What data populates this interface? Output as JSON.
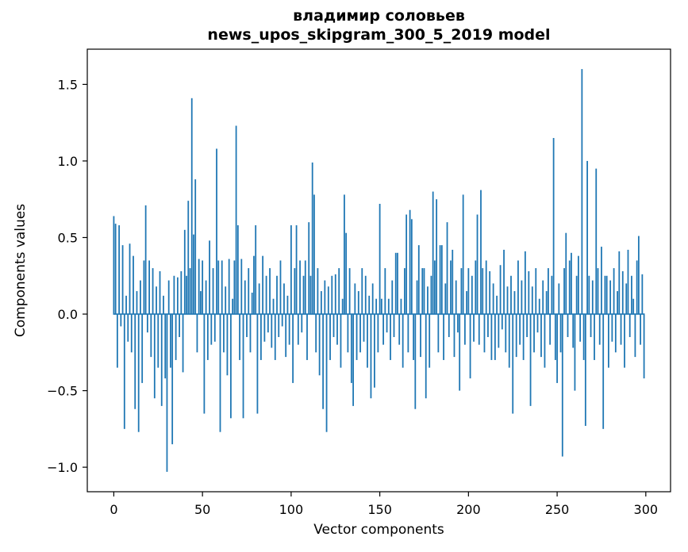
{
  "chart_data": {
    "type": "bar",
    "title_line1": "владимир соловьев",
    "title_line2": "news_upos_skipgram_300_5_2019 model",
    "xlabel": "Vector components",
    "ylabel": "Components values",
    "bar_color": "#1f77b4",
    "axis_color": "#000000",
    "grid": false,
    "legend": "none",
    "xlim": [
      -14.95,
      313.95
    ],
    "ylim": [
      -1.16,
      1.73
    ],
    "xticks": [
      0,
      50,
      100,
      150,
      200,
      250,
      300
    ],
    "xtick_labels": [
      "0",
      "50",
      "100",
      "150",
      "200",
      "250",
      "300"
    ],
    "yticks": [
      -1.0,
      -0.5,
      0.0,
      0.5,
      1.0,
      1.5
    ],
    "ytick_labels": [
      "−1.0",
      "−0.5",
      "0.0",
      "0.5",
      "1.0",
      "1.5"
    ],
    "n_components": 300,
    "values": [
      0.64,
      0.59,
      -0.35,
      0.58,
      -0.08,
      0.45,
      -0.75,
      0.12,
      -0.18,
      0.46,
      -0.25,
      0.38,
      -0.62,
      0.15,
      -0.77,
      0.22,
      -0.45,
      0.35,
      0.71,
      -0.12,
      0.35,
      -0.28,
      0.3,
      -0.55,
      0.18,
      -0.35,
      0.28,
      -0.6,
      0.12,
      -0.42,
      -1.03,
      0.22,
      -0.35,
      -0.85,
      0.25,
      -0.3,
      0.24,
      -0.15,
      0.28,
      -0.38,
      0.55,
      0.25,
      0.74,
      0.3,
      1.41,
      0.52,
      0.88,
      -0.25,
      0.36,
      0.15,
      0.35,
      -0.65,
      0.22,
      -0.3,
      0.48,
      -0.2,
      0.3,
      -0.18,
      1.08,
      0.35,
      -0.77,
      0.35,
      -0.25,
      0.18,
      -0.4,
      0.36,
      -0.68,
      0.1,
      0.35,
      1.23,
      0.58,
      -0.3,
      0.36,
      -0.68,
      0.22,
      -0.15,
      0.3,
      -0.25,
      0.14,
      0.38,
      0.58,
      -0.65,
      0.2,
      -0.3,
      0.38,
      -0.18,
      0.25,
      -0.12,
      0.3,
      -0.22,
      0.1,
      -0.3,
      0.25,
      -0.15,
      0.35,
      -0.08,
      0.2,
      -0.28,
      0.12,
      -0.2,
      0.58,
      -0.45,
      0.3,
      0.58,
      -0.2,
      0.35,
      -0.12,
      0.25,
      0.35,
      -0.3,
      0.6,
      0.25,
      0.99,
      0.78,
      -0.25,
      0.3,
      -0.4,
      0.15,
      -0.62,
      0.22,
      -0.77,
      0.18,
      -0.3,
      0.25,
      -0.15,
      0.26,
      -0.2,
      0.3,
      -0.35,
      0.1,
      0.78,
      0.53,
      -0.25,
      0.3,
      -0.45,
      -0.6,
      0.2,
      -0.3,
      0.15,
      -0.25,
      0.3,
      -0.18,
      0.25,
      -0.35,
      0.12,
      -0.55,
      0.2,
      -0.48,
      0.1,
      -0.25,
      0.72,
      0.1,
      -0.2,
      0.3,
      -0.12,
      0.1,
      -0.3,
      0.22,
      -0.15,
      0.4,
      0.4,
      -0.2,
      0.1,
      -0.35,
      0.3,
      0.65,
      -0.25,
      0.68,
      0.62,
      -0.3,
      -0.62,
      0.22,
      0.45,
      -0.28,
      0.3,
      0.3,
      -0.55,
      0.18,
      -0.35,
      0.25,
      0.8,
      0.35,
      0.75,
      -0.25,
      0.45,
      0.45,
      -0.3,
      0.2,
      0.6,
      -0.15,
      0.35,
      0.42,
      -0.28,
      0.22,
      -0.12,
      -0.5,
      0.3,
      0.78,
      -0.2,
      0.15,
      0.3,
      -0.42,
      0.25,
      -0.18,
      0.35,
      0.65,
      -0.2,
      0.81,
      0.3,
      -0.25,
      0.35,
      -0.15,
      0.28,
      -0.3,
      0.2,
      -0.3,
      0.12,
      -0.22,
      0.32,
      -0.1,
      0.42,
      -0.25,
      0.18,
      -0.35,
      0.25,
      -0.65,
      0.15,
      -0.28,
      0.35,
      -0.2,
      0.22,
      -0.3,
      0.41,
      -0.15,
      0.28,
      -0.6,
      0.18,
      -0.25,
      0.3,
      -0.12,
      0.1,
      -0.28,
      0.22,
      -0.35,
      0.15,
      0.3,
      -0.2,
      0.25,
      1.15,
      -0.3,
      -0.45,
      0.2,
      -0.25,
      -0.93,
      0.3,
      0.53,
      -0.15,
      0.35,
      0.4,
      -0.22,
      -0.5,
      0.25,
      0.38,
      -0.18,
      1.6,
      -0.3,
      -0.73,
      1.0,
      0.25,
      -0.15,
      0.22,
      -0.3,
      0.95,
      0.3,
      -0.2,
      0.44,
      -0.75,
      0.25,
      0.25,
      -0.35,
      0.22,
      -0.18,
      0.3,
      -0.25,
      0.15,
      0.41,
      -0.2,
      0.28,
      -0.35,
      0.2,
      0.42,
      -0.15,
      0.25,
      0.1,
      -0.28,
      0.35,
      0.51,
      -0.2,
      0.26,
      -0.42
    ]
  }
}
